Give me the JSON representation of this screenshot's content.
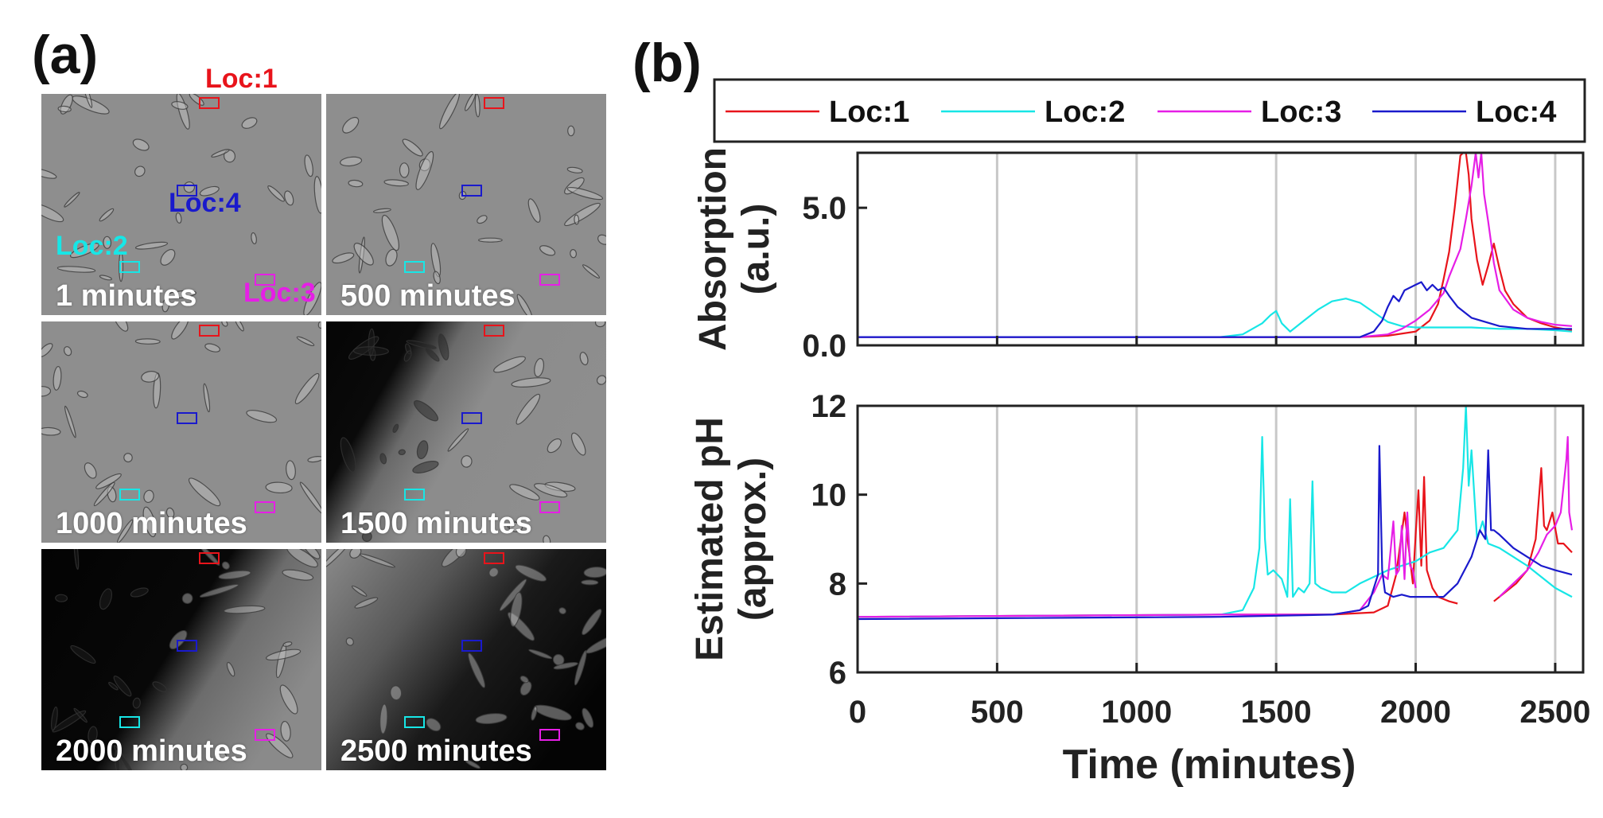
{
  "panel_a": {
    "label": "(a)",
    "frames": [
      {
        "time_label": "1 minutes",
        "style": "light"
      },
      {
        "time_label": "500 minutes",
        "style": "light"
      },
      {
        "time_label": "1000 minutes",
        "style": "light"
      },
      {
        "time_label": "1500 minutes",
        "style": "dark-left"
      },
      {
        "time_label": "2000 minutes",
        "style": "dark-most"
      },
      {
        "time_label": "2500 minutes",
        "style": "dark-edge"
      }
    ],
    "locations": [
      {
        "label": "Loc:1",
        "color": "#e8141b"
      },
      {
        "label": "Loc:2",
        "color": "#17e6e6"
      },
      {
        "label": "Loc:3",
        "color": "#e61ee6"
      },
      {
        "label": "Loc:4",
        "color": "#1a1acc"
      }
    ]
  },
  "panel_b": {
    "label": "(b)"
  },
  "chart_data": [
    {
      "type": "line",
      "ylabel": "Absorption (a.u.)",
      "ylabel_lines": [
        "Absorption",
        "(a.u.)"
      ],
      "xlim": [
        0,
        2600
      ],
      "ylim": [
        0,
        7
      ],
      "yticks": [
        0,
        5
      ],
      "ytick_labels": [
        "0.0",
        "5.0"
      ],
      "xticks": [
        0,
        500,
        1000,
        1500,
        2000,
        2500
      ],
      "grid": "vertical",
      "legend": {
        "placement": "top",
        "entries": [
          "Loc:1",
          "Loc:2",
          "Loc:3",
          "Loc:4"
        ]
      },
      "series": [
        {
          "name": "Loc:1",
          "color": "#e8141b",
          "x": [
            0,
            1800,
            1900,
            2000,
            2050,
            2080,
            2100,
            2120,
            2140,
            2160,
            2170,
            2180,
            2190,
            2200,
            2220,
            2240,
            2260,
            2280,
            2300,
            2320,
            2350,
            2400,
            2450,
            2500,
            2560
          ],
          "y": [
            0.3,
            0.3,
            0.35,
            0.5,
            0.9,
            1.5,
            2.4,
            3.4,
            5.0,
            6.9,
            7,
            7,
            6.2,
            4.6,
            3.1,
            2.2,
            2.9,
            3.7,
            2.8,
            2.0,
            1.5,
            1.0,
            0.8,
            0.65,
            0.55
          ]
        },
        {
          "name": "Loc:2",
          "color": "#17e6e6",
          "x": [
            0,
            1300,
            1380,
            1450,
            1480,
            1500,
            1520,
            1550,
            1600,
            1650,
            1700,
            1750,
            1800,
            1850,
            1900,
            1950,
            2000,
            2100,
            2200,
            2300,
            2400,
            2500,
            2560
          ],
          "y": [
            0.3,
            0.3,
            0.4,
            0.8,
            1.1,
            1.25,
            0.8,
            0.5,
            0.9,
            1.3,
            1.6,
            1.7,
            1.55,
            1.2,
            0.85,
            0.7,
            0.65,
            0.65,
            0.65,
            0.6,
            0.6,
            0.55,
            0.5
          ]
        },
        {
          "name": "Loc:3",
          "color": "#e61ee6",
          "x": [
            0,
            1800,
            1900,
            1950,
            2000,
            2050,
            2100,
            2120,
            2140,
            2160,
            2180,
            2200,
            2215,
            2225,
            2235,
            2245,
            2260,
            2280,
            2300,
            2350,
            2400,
            2450,
            2500,
            2560
          ],
          "y": [
            0.3,
            0.3,
            0.4,
            0.6,
            0.9,
            1.3,
            1.9,
            2.5,
            3.0,
            3.5,
            4.6,
            5.8,
            7,
            6.1,
            7,
            5.5,
            4.5,
            3.0,
            2.0,
            1.3,
            1.0,
            0.85,
            0.75,
            0.7
          ]
        },
        {
          "name": "Loc:4",
          "color": "#1a1acc",
          "x": [
            0,
            1800,
            1850,
            1880,
            1900,
            1920,
            1940,
            1960,
            1980,
            2000,
            2020,
            2040,
            2060,
            2080,
            2100,
            2120,
            2150,
            2200,
            2300,
            2400,
            2500,
            2560
          ],
          "y": [
            0.3,
            0.3,
            0.5,
            0.9,
            1.4,
            1.8,
            1.6,
            2.0,
            2.1,
            2.2,
            2.3,
            2.0,
            2.2,
            2.0,
            2.1,
            1.8,
            1.4,
            1.0,
            0.7,
            0.6,
            0.6,
            0.6
          ]
        }
      ]
    },
    {
      "type": "line",
      "xlabel": "Time (minutes)",
      "ylabel": "Estimated pH (approx.)",
      "ylabel_lines": [
        "Estimated pH",
        "(approx.)"
      ],
      "xlim": [
        0,
        2600
      ],
      "ylim": [
        6,
        12
      ],
      "yticks": [
        6,
        8,
        10,
        12
      ],
      "xticks": [
        0,
        500,
        1000,
        1500,
        2000,
        2500
      ],
      "grid": "vertical",
      "series": [
        {
          "name": "Loc:1",
          "color": "#e8141b",
          "x": [
            0,
            1300,
            1700,
            1850,
            1900,
            1930,
            1960,
            1990,
            2000,
            2010,
            2020,
            2030,
            2040,
            2060,
            2080,
            2100,
            2120,
            2150,
            null,
            2280,
            2320,
            2360,
            2400,
            2430,
            2450,
            2460,
            2470,
            2490,
            2510,
            2530,
            2560
          ],
          "y": [
            7.25,
            7.3,
            7.3,
            7.35,
            7.5,
            8.2,
            9.6,
            8.0,
            9.1,
            10.1,
            8.4,
            10.4,
            8.3,
            7.9,
            7.7,
            7.65,
            7.6,
            7.55,
            null,
            7.6,
            7.8,
            8.0,
            8.3,
            9.0,
            10.6,
            9.3,
            9.2,
            9.6,
            8.9,
            8.9,
            8.7
          ]
        },
        {
          "name": "Loc:2",
          "color": "#17e6e6",
          "x": [
            0,
            1300,
            1380,
            1420,
            1440,
            1450,
            1460,
            1470,
            1490,
            1520,
            1540,
            1550,
            1560,
            1580,
            1600,
            1620,
            1630,
            1640,
            1660,
            1700,
            1750,
            1800,
            1900,
            2000,
            2050,
            2100,
            2150,
            2170,
            2180,
            2190,
            2200,
            2220,
            2240,
            2260,
            2300,
            2400,
            2500,
            2560
          ],
          "y": [
            7.25,
            7.3,
            7.4,
            7.9,
            8.8,
            11.3,
            9.0,
            8.2,
            8.3,
            8.1,
            7.7,
            9.9,
            7.7,
            7.9,
            7.8,
            8.0,
            10.3,
            8.0,
            7.9,
            7.8,
            7.8,
            8.0,
            8.3,
            8.5,
            8.7,
            8.8,
            9.2,
            10.6,
            12.0,
            10.2,
            11.0,
            9.0,
            9.4,
            8.9,
            8.8,
            8.4,
            7.9,
            7.7
          ]
        },
        {
          "name": "Loc:3",
          "color": "#e61ee6",
          "x": [
            0,
            1300,
            1700,
            1800,
            1850,
            1880,
            1900,
            1920,
            1930,
            1940,
            1950,
            1960,
            1970,
            1980,
            1990,
            2000,
            null,
            2300,
            2350,
            2400,
            2440,
            2470,
            2500,
            2520,
            2540,
            2545,
            2550,
            2560
          ],
          "y": [
            7.25,
            7.3,
            7.3,
            7.4,
            7.8,
            8.2,
            8.1,
            9.4,
            8.2,
            8.3,
            9.3,
            8.1,
            9.6,
            8.4,
            8.3,
            7.9,
            null,
            7.7,
            8.0,
            8.3,
            8.7,
            9.1,
            9.3,
            9.6,
            10.8,
            11.3,
            9.6,
            9.2
          ]
        },
        {
          "name": "Loc:4",
          "color": "#1a1acc",
          "x": [
            0,
            1300,
            1700,
            1800,
            1830,
            1850,
            1865,
            1870,
            1880,
            1890,
            1920,
            1950,
            1980,
            2000,
            2050,
            2100,
            2150,
            2200,
            2230,
            2250,
            2260,
            2270,
            2280,
            2300,
            2350,
            2400,
            2450,
            2500,
            2560
          ],
          "y": [
            7.2,
            7.25,
            7.3,
            7.4,
            7.5,
            7.9,
            8.2,
            11.1,
            8.3,
            7.8,
            7.7,
            7.75,
            7.7,
            7.7,
            7.7,
            7.7,
            8.0,
            8.6,
            9.2,
            9.0,
            11.0,
            9.2,
            9.2,
            9.1,
            8.8,
            8.6,
            8.4,
            8.3,
            8.2
          ]
        }
      ]
    }
  ]
}
